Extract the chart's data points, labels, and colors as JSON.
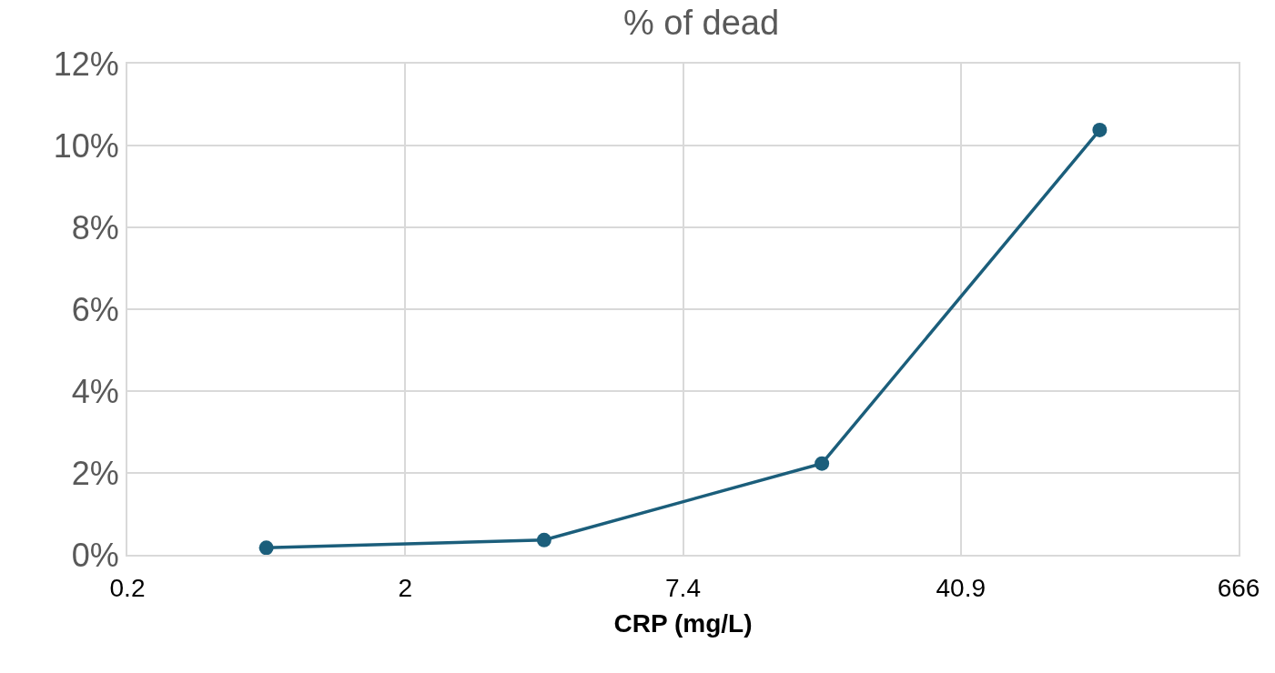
{
  "chart_data": {
    "type": "line",
    "title": "% of dead",
    "xlabel": "CRP (mg/L)",
    "categories": [
      "0.2",
      null,
      "2",
      null,
      "7.4",
      null,
      "40.9",
      null,
      "666"
    ],
    "series": [
      {
        "color": "#1b5e7b",
        "values": [
          null,
          0.17,
          null,
          0.36,
          null,
          2.23,
          null,
          10.38,
          null
        ]
      }
    ],
    "ylim": [
      0,
      12
    ],
    "yticks": [
      {
        "value": 0,
        "label": "0%"
      },
      {
        "value": 2,
        "label": "2%"
      },
      {
        "value": 4,
        "label": "4%"
      },
      {
        "value": 6,
        "label": "6%"
      },
      {
        "value": 8,
        "label": "8%"
      },
      {
        "value": 10,
        "label": "10%"
      },
      {
        "value": 12,
        "label": "12%"
      }
    ],
    "grid": true,
    "marker": "circle",
    "line_style": "solid"
  }
}
